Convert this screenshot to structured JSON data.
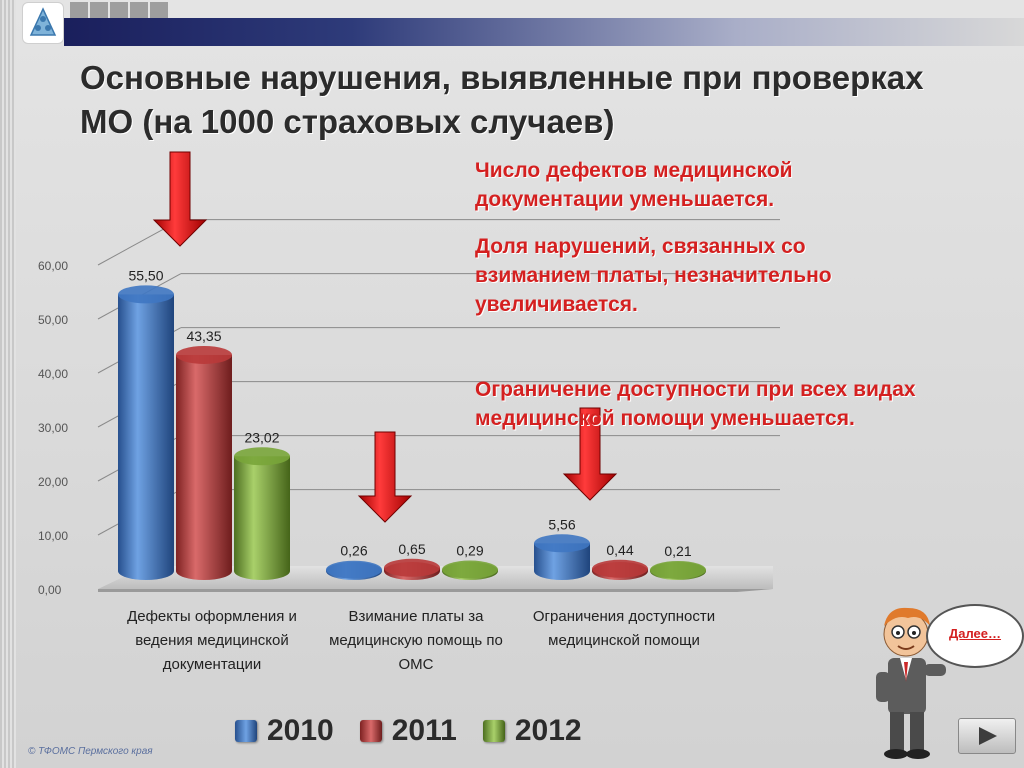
{
  "slide": {
    "title": "Основные нарушения, выявленные при проверках МО (на 1000 страховых случаев)",
    "notes": [
      "Число дефектов медицинской документации уменьшается.",
      "Доля нарушений, связанных со взиманием платы, незначительно увеличивается.",
      "Ограничение доступности при всех видах медицинской помощи уменьшается."
    ],
    "footer": "© ТФОМС Пермского края",
    "next_label": "Далее…",
    "next_button_icon": "play-icon"
  },
  "colors": {
    "2010": "#3f77c2",
    "2011": "#b93a3a",
    "2012": "#79a53a",
    "accent": "#d42020"
  },
  "chart_data": {
    "type": "bar",
    "categories": [
      "Дефекты оформления и ведения медицинской документации",
      "Взимание платы за медицинскую помощь по ОМС",
      "Ограничения доступности медицинской помощи"
    ],
    "series": [
      {
        "name": "2010",
        "values": [
          55.5,
          0.26,
          5.56
        ]
      },
      {
        "name": "2011",
        "values": [
          43.35,
          0.65,
          0.44
        ]
      },
      {
        "name": "2012",
        "values": [
          23.02,
          0.29,
          0.21
        ]
      }
    ],
    "value_labels": [
      [
        "55,50",
        "0,26",
        "5,56"
      ],
      [
        "43,35",
        "0,65",
        "0,44"
      ],
      [
        "23,02",
        "0,29",
        "0,21"
      ]
    ],
    "yticks": [
      "0,00",
      "10,00",
      "20,00",
      "30,00",
      "40,00",
      "50,00",
      "60,00"
    ],
    "ylim": [
      0,
      60
    ],
    "legend": [
      "2010",
      "2011",
      "2012"
    ],
    "legend_position": "bottom",
    "grid": true
  }
}
